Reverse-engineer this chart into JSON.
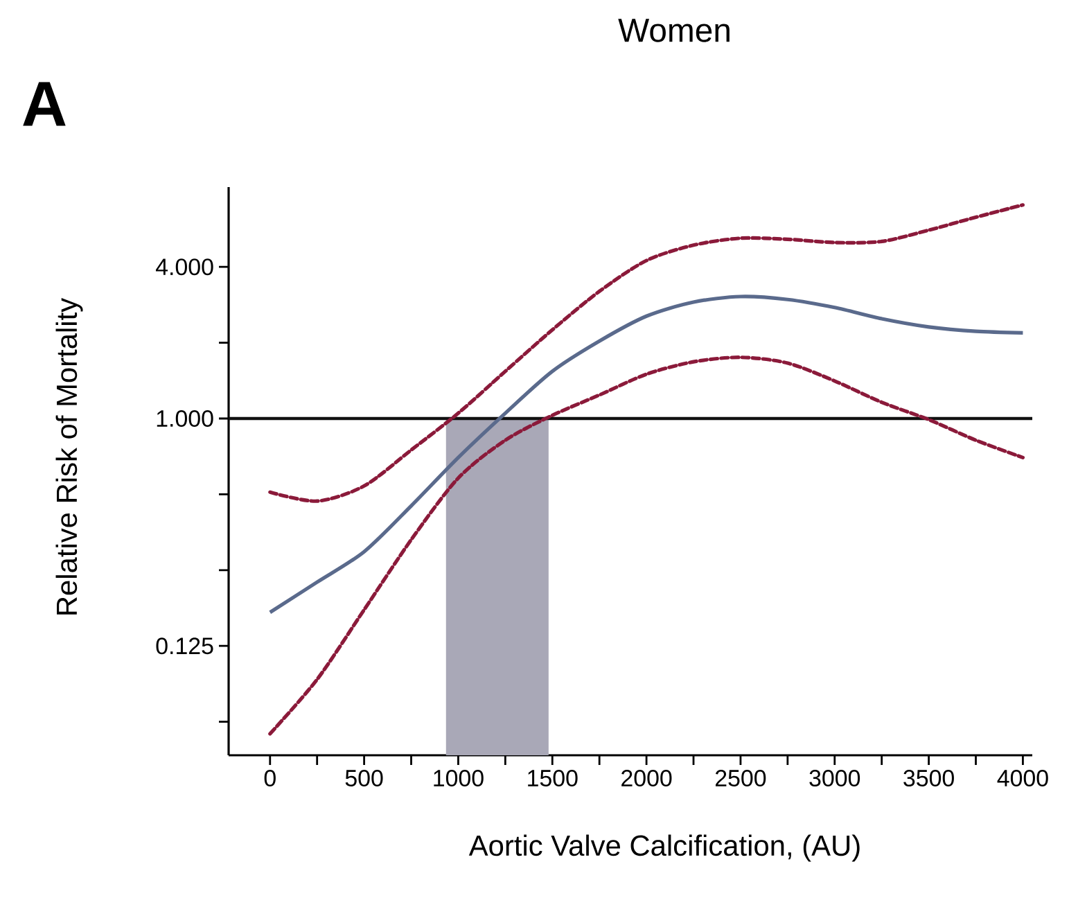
{
  "chart_data": {
    "type": "line",
    "title": "Women",
    "xlabel": "Aortic Valve Calcification, (AU)",
    "ylabel": "Relative Risk of Mortality",
    "annotations": [
      "A"
    ],
    "log": "y",
    "xlim": [
      -220,
      4050
    ],
    "ylim": [
      0.046,
      8.3
    ],
    "xticks": [
      0,
      {
        "value": 250,
        "label": null
      },
      500,
      {
        "value": 750,
        "label": null
      },
      1000,
      {
        "value": 1250,
        "label": null
      },
      1500,
      {
        "value": 1750,
        "label": null
      },
      2000,
      {
        "value": 2250,
        "label": null
      },
      2500,
      {
        "value": 2750,
        "label": null
      },
      3000,
      {
        "value": 3250,
        "label": null
      },
      3500,
      {
        "value": 3750,
        "label": null
      },
      4000
    ],
    "yticks": [
      {
        "value": 0.0625,
        "label": null
      },
      {
        "value": 0.125,
        "label": "0.125"
      },
      {
        "value": 0.25,
        "label": null
      },
      {
        "value": 0.5,
        "label": null
      },
      {
        "value": 1,
        "label": "1.000"
      },
      {
        "value": 2,
        "label": null
      },
      {
        "value": 4,
        "label": "4.000"
      }
    ],
    "x": [
      0,
      250,
      500,
      750,
      1000,
      1250,
      1500,
      1750,
      2000,
      2250,
      2500,
      2750,
      3000,
      3250,
      3500,
      3750,
      4000
    ],
    "series": [
      {
        "color": "#5a6a8c",
        "line_style": "solid",
        "values": [
          0.17,
          0.224,
          0.296,
          0.45,
          0.7,
          1.05,
          1.54,
          2.03,
          2.55,
          2.9,
          3.05,
          2.97,
          2.76,
          2.49,
          2.31,
          2.22,
          2.19
        ]
      },
      {
        "color": "#8b1a3a",
        "line_style": "dashed",
        "values": [
          0.51,
          0.47,
          0.54,
          0.75,
          1.05,
          1.54,
          2.25,
          3.2,
          4.24,
          4.88,
          5.2,
          5.15,
          5.0,
          5.05,
          5.6,
          6.3,
          7.05
        ]
      },
      {
        "color": "#8b1a3a",
        "line_style": "dashed",
        "values": [
          0.056,
          0.092,
          0.174,
          0.33,
          0.58,
          0.82,
          1.03,
          1.24,
          1.5,
          1.68,
          1.75,
          1.66,
          1.41,
          1.16,
          0.99,
          0.82,
          0.7
        ]
      }
    ],
    "ref_lines": [
      {
        "axis": "y",
        "value": 1,
        "color": "#111111"
      }
    ],
    "bands": [
      {
        "axis": "x",
        "from": 935,
        "to": 1480,
        "color": "#a9a8b7"
      }
    ],
    "grid": false,
    "marker": "none"
  }
}
